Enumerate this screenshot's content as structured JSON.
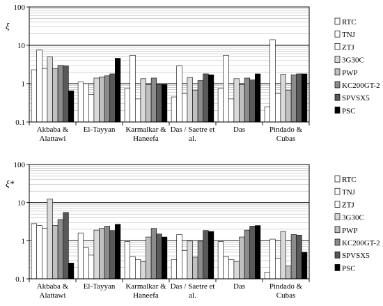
{
  "chart_data": [
    {
      "type": "bar",
      "ylabel": "ξ",
      "yscale": "log",
      "ylim": [
        0.1,
        100
      ],
      "yticks": [
        "0.1",
        "1",
        "10",
        "100"
      ],
      "grid": true,
      "legend": "right",
      "categories": [
        [
          "Akbaba &",
          "Alattawi"
        ],
        [
          "El-Tayyan"
        ],
        [
          "Karmalkar &",
          "Haneefa"
        ],
        [
          "Das / Saetre et",
          "al."
        ],
        [
          "Das"
        ],
        [
          "Pindado &",
          "Cubas"
        ]
      ],
      "series": [
        {
          "name": "RTC",
          "color": "#ffffff",
          "values": [
            2.3,
            1.1,
            0.75,
            0.45,
            0.75,
            0.25
          ]
        },
        {
          "name": "TNJ",
          "color": "#ffffff",
          "values": [
            7.5,
            1.0,
            5.5,
            2.9,
            5.5,
            14
          ]
        },
        {
          "name": "ZTJ",
          "color": "#ffffff",
          "values": [
            2.5,
            0.52,
            0.4,
            0.55,
            0.4,
            0.55
          ]
        },
        {
          "name": "3G30C",
          "color": "#d9d9d9",
          "values": [
            5.0,
            1.4,
            1.35,
            1.45,
            1.35,
            1.75
          ]
        },
        {
          "name": "PWP",
          "color": "#c0c0c0",
          "values": [
            2.5,
            1.5,
            0.95,
            0.68,
            0.95,
            0.68
          ]
        },
        {
          "name": "KC200GT-2",
          "color": "#8c8c8c",
          "values": [
            3.0,
            1.6,
            1.4,
            1.2,
            1.4,
            1.7
          ]
        },
        {
          "name": "SPVSX5",
          "color": "#595959",
          "values": [
            2.9,
            1.8,
            0.95,
            1.8,
            1.25,
            1.8
          ]
        },
        {
          "name": "PSC",
          "color": "#000000",
          "values": [
            0.65,
            4.6,
            0.95,
            1.7,
            1.8,
            1.8
          ]
        }
      ]
    },
    {
      "type": "bar",
      "ylabel": "ξ*",
      "yscale": "log",
      "ylim": [
        0.1,
        100
      ],
      "yticks": [
        "0.1",
        "1",
        "10",
        "100"
      ],
      "grid": true,
      "legend": "right",
      "categories": [
        [
          "Akbaba &",
          "Alattawi"
        ],
        [
          "El-Tayyan"
        ],
        [
          "Karmalkar &",
          "Haneefa"
        ],
        [
          "Das / Saetre et",
          "al."
        ],
        [
          "Das"
        ],
        [
          "Pindado &",
          "Cubas"
        ]
      ],
      "series": [
        {
          "name": "RTC",
          "color": "#ffffff",
          "values": [
            2.8,
            1.6,
            0.95,
            0.32,
            0.95,
            0.15
          ]
        },
        {
          "name": "TNJ",
          "color": "#ffffff",
          "values": [
            2.5,
            0.65,
            0.38,
            1.45,
            0.38,
            1.1
          ]
        },
        {
          "name": "ZTJ",
          "color": "#ffffff",
          "values": [
            2.1,
            0.42,
            0.32,
            0.55,
            0.32,
            0.35
          ]
        },
        {
          "name": "3G30C",
          "color": "#d9d9d9",
          "values": [
            12.5,
            1.9,
            0.28,
            0.98,
            0.28,
            1.75
          ]
        },
        {
          "name": "PWP",
          "color": "#c0c0c0",
          "values": [
            2.5,
            2.1,
            1.25,
            0.37,
            1.25,
            0.22
          ]
        },
        {
          "name": "KC200GT-2",
          "color": "#8c8c8c",
          "values": [
            3.6,
            2.4,
            2.1,
            0.98,
            1.9,
            1.45
          ]
        },
        {
          "name": "SPVSX5",
          "color": "#595959",
          "values": [
            5.5,
            1.85,
            1.5,
            1.85,
            2.4,
            1.4
          ]
        },
        {
          "name": "PSC",
          "color": "#000000",
          "values": [
            0.26,
            2.7,
            1.25,
            1.75,
            2.5,
            0.5
          ]
        }
      ]
    }
  ]
}
